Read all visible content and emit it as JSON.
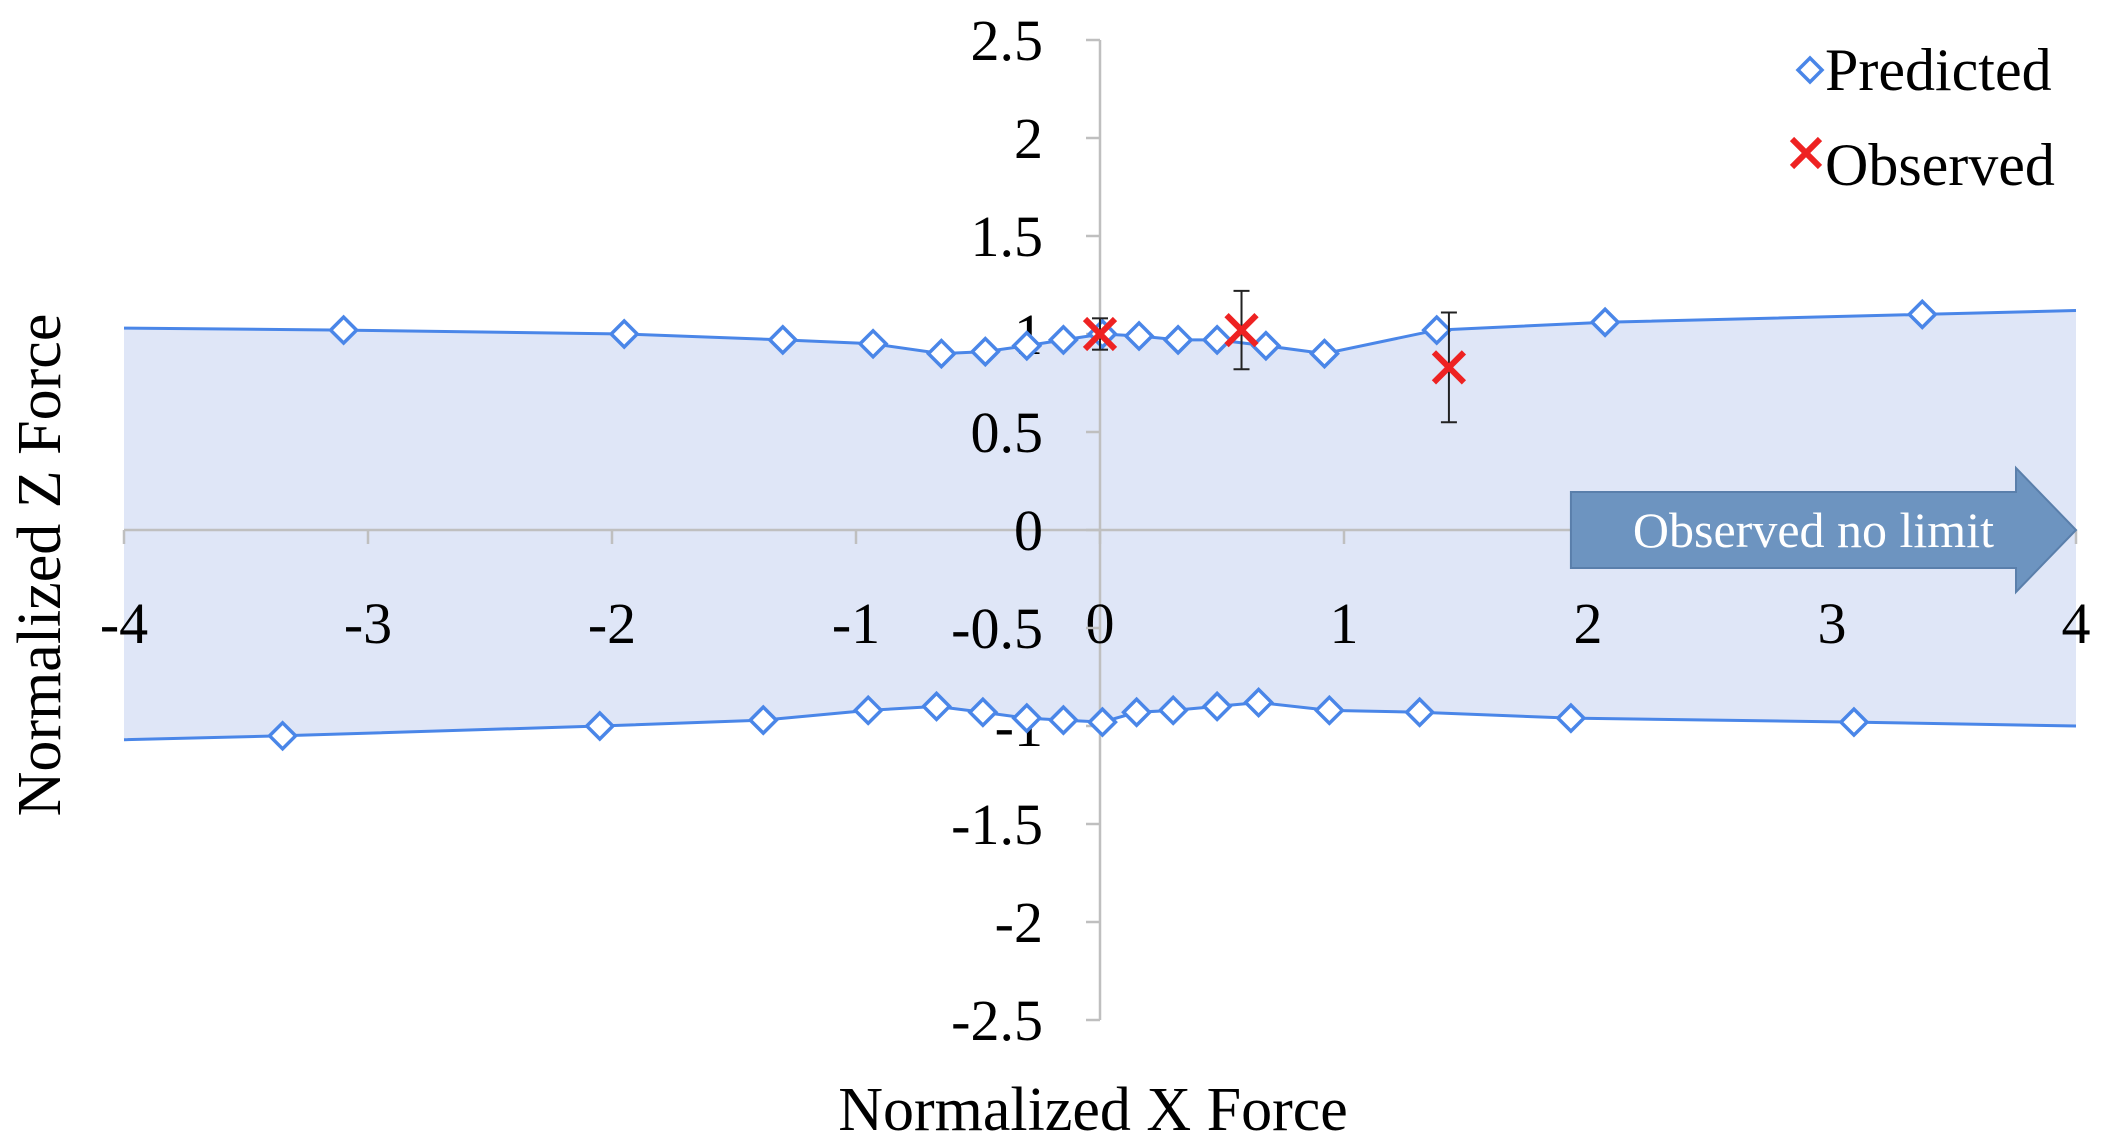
{
  "chart_data": {
    "type": "scatter",
    "title": "",
    "xlabel": "Normalized X Force",
    "ylabel": "Normalized Z Force",
    "xlim": [
      -4,
      4
    ],
    "ylim": [
      -2.5,
      2.5
    ],
    "x_ticks": [
      -4,
      -3,
      -2,
      -1,
      0,
      1,
      2,
      3,
      4
    ],
    "y_ticks": [
      2.5,
      2,
      1.5,
      1,
      0.5,
      0,
      -0.5,
      -1,
      -1.5,
      -2,
      -2.5
    ],
    "x_tick_labels": [
      "-4",
      "-3",
      "-2",
      "-1",
      "0",
      "1",
      "2",
      "3",
      "4"
    ],
    "y_tick_labels": [
      "2.5",
      "2",
      "1.5",
      "1",
      "0.5",
      "0",
      "-0.5",
      "-1",
      "-1.5",
      "-2",
      "-2.5"
    ],
    "grid": false,
    "legend_position": "top-right",
    "series": [
      {
        "name": "Predicted",
        "marker": "diamond",
        "color": "#4a86e8",
        "fill_region": "#dfe6f7",
        "upper": {
          "x": [
            -4,
            -3.1,
            -1.95,
            -1.3,
            -0.93,
            -0.65,
            -0.47,
            -0.3,
            -0.15,
            0.01,
            0.16,
            0.32,
            0.48,
            0.68,
            0.92,
            1.38,
            2.07,
            3.37,
            4
          ],
          "y": [
            1.03,
            1.02,
            1.0,
            0.97,
            0.95,
            0.9,
            0.91,
            0.94,
            0.97,
            1.0,
            0.99,
            0.97,
            0.97,
            0.94,
            0.9,
            1.02,
            1.06,
            1.1,
            1.12
          ],
          "markers": [
            false,
            true,
            true,
            true,
            true,
            true,
            true,
            true,
            true,
            true,
            true,
            true,
            true,
            true,
            true,
            true,
            true,
            true,
            false
          ]
        },
        "lower": {
          "x": [
            -4,
            -3.35,
            -2.05,
            -1.38,
            -0.95,
            -0.67,
            -0.48,
            -0.3,
            -0.15,
            0.01,
            0.15,
            0.3,
            0.48,
            0.65,
            0.94,
            1.31,
            1.93,
            3.09,
            4
          ],
          "y": [
            -1.07,
            -1.05,
            -1.0,
            -0.97,
            -0.92,
            -0.9,
            -0.93,
            -0.96,
            -0.97,
            -0.98,
            -0.93,
            -0.92,
            -0.9,
            -0.88,
            -0.92,
            -0.93,
            -0.96,
            -0.98,
            -1.0
          ],
          "markers": [
            false,
            true,
            true,
            true,
            true,
            true,
            true,
            true,
            true,
            true,
            true,
            true,
            true,
            true,
            true,
            true,
            true,
            true,
            false
          ]
        }
      },
      {
        "name": "Observed",
        "marker": "x",
        "color": "#ee2222",
        "points": [
          {
            "x": 0.0,
            "y": 1.0,
            "err": 0.08
          },
          {
            "x": 0.58,
            "y": 1.02,
            "err": 0.2
          },
          {
            "x": 1.43,
            "y": 0.83,
            "err": 0.28
          }
        ]
      }
    ],
    "annotations": [
      {
        "text": "Observed no limit",
        "shape": "right-arrow",
        "from_x": 1.93,
        "to_x": 4,
        "y": 0
      }
    ]
  }
}
